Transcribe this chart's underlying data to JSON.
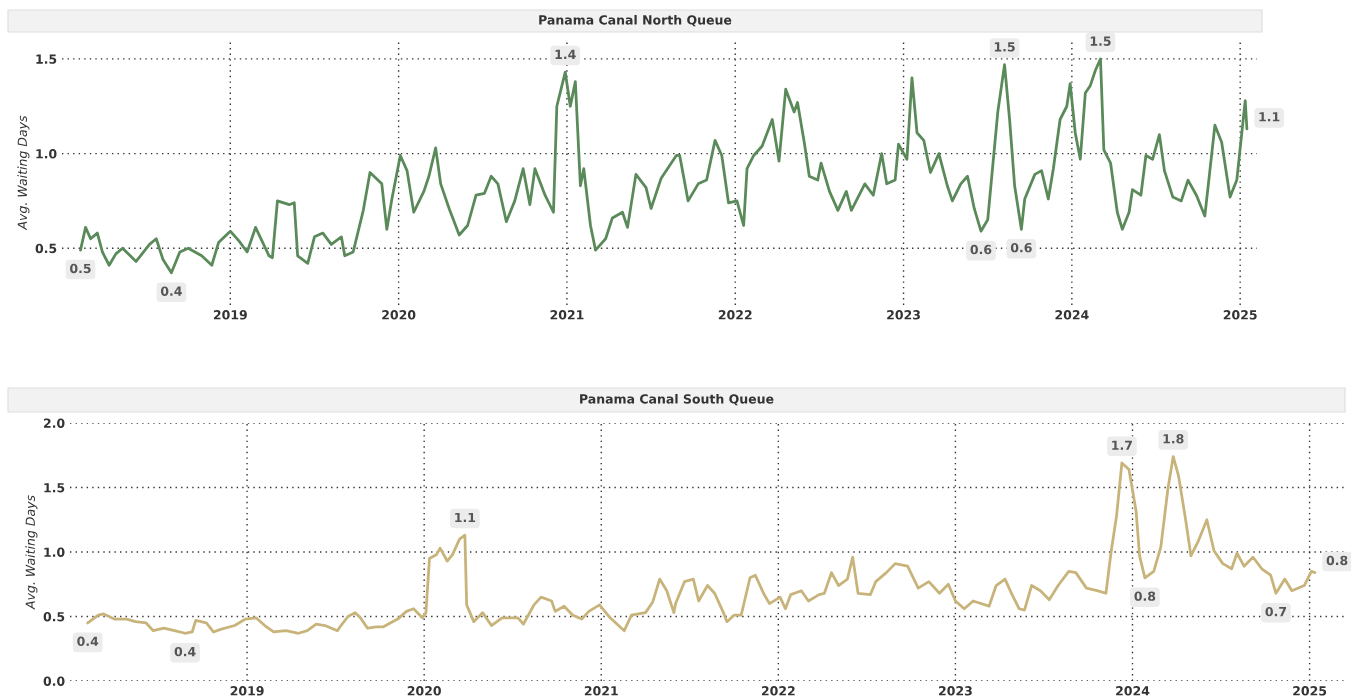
{
  "chart_data": [
    {
      "type": "line",
      "title": "Panama Canal North Queue",
      "ylabel": "Avg. Waiting Days",
      "grid": true,
      "legend": false,
      "xlim": [
        2018.0,
        2025.1
      ],
      "xticks": [
        2019,
        2020,
        2021,
        2022,
        2023,
        2024,
        2025
      ],
      "ylim": [
        0.2,
        1.6
      ],
      "yticks": [
        {
          "value": 0.5,
          "label": "0.5"
        },
        {
          "value": 1.0,
          "label": "1.0"
        },
        {
          "value": 1.5,
          "label": "1.5"
        }
      ],
      "series": [
        {
          "color": "#5a8a5a",
          "x": [
            2018.11,
            2018.14,
            2018.17,
            2018.21,
            2018.24,
            2018.28,
            2018.32,
            2018.36,
            2018.44,
            2018.52,
            2018.56,
            2018.6,
            2018.65,
            2018.7,
            2018.75,
            2018.83,
            2018.89,
            2018.93,
            2019.0,
            2019.05,
            2019.1,
            2019.15,
            2019.23,
            2019.25,
            2019.28,
            2019.35,
            2019.38,
            2019.4,
            2019.46,
            2019.5,
            2019.55,
            2019.6,
            2019.66,
            2019.68,
            2019.73,
            2019.79,
            2019.83,
            2019.9,
            2019.93,
            2019.96,
            2020.01,
            2020.05,
            2020.09,
            2020.15,
            2020.18,
            2020.22,
            2020.25,
            2020.3,
            2020.36,
            2020.41,
            2020.46,
            2020.51,
            2020.55,
            2020.59,
            2020.64,
            2020.69,
            2020.74,
            2020.78,
            2020.81,
            2020.87,
            2020.92,
            2020.94,
            2020.99,
            2021.02,
            2021.05,
            2021.08,
            2021.1,
            2021.14,
            2021.17,
            2021.23,
            2021.27,
            2021.33,
            2021.36,
            2021.41,
            2021.47,
            2021.5,
            2021.56,
            2021.65,
            2021.67,
            2021.72,
            2021.78,
            2021.83,
            2021.88,
            2021.92,
            2021.96,
            2022.01,
            2022.05,
            2022.07,
            2022.11,
            2022.16,
            2022.22,
            2022.26,
            2022.3,
            2022.35,
            2022.37,
            2022.41,
            2022.44,
            2022.49,
            2022.51,
            2022.56,
            2022.61,
            2022.66,
            2022.69,
            2022.77,
            2022.82,
            2022.87,
            2022.9,
            2022.95,
            2022.97,
            2023.02,
            2023.05,
            2023.08,
            2023.12,
            2023.16,
            2023.21,
            2023.26,
            2023.29,
            2023.34,
            2023.38,
            2023.42,
            2023.46,
            2023.5,
            2023.52,
            2023.56,
            2023.6,
            2023.63,
            2023.66,
            2023.7,
            2023.72,
            2023.78,
            2023.82,
            2023.86,
            2023.89,
            2023.93,
            2023.97,
            2023.99,
            2024.02,
            2024.05,
            2024.08,
            2024.11,
            2024.14,
            2024.17,
            2024.19,
            2024.23,
            2024.27,
            2024.3,
            2024.34,
            2024.36,
            2024.41,
            2024.44,
            2024.48,
            2024.52,
            2024.55,
            2024.6,
            2024.65,
            2024.69,
            2024.74,
            2024.79,
            2024.85,
            2024.89,
            2024.94,
            2024.98,
            2025.03,
            2025.04
          ],
          "values": [
            0.49,
            0.61,
            0.55,
            0.58,
            0.48,
            0.41,
            0.47,
            0.5,
            0.43,
            0.52,
            0.55,
            0.44,
            0.37,
            0.48,
            0.5,
            0.46,
            0.41,
            0.53,
            0.59,
            0.54,
            0.48,
            0.61,
            0.46,
            0.45,
            0.75,
            0.73,
            0.74,
            0.46,
            0.42,
            0.56,
            0.58,
            0.52,
            0.56,
            0.46,
            0.48,
            0.7,
            0.9,
            0.84,
            0.6,
            0.76,
            0.99,
            0.91,
            0.69,
            0.8,
            0.88,
            1.03,
            0.84,
            0.71,
            0.57,
            0.62,
            0.78,
            0.79,
            0.88,
            0.84,
            0.64,
            0.75,
            0.92,
            0.73,
            0.92,
            0.78,
            0.69,
            1.25,
            1.43,
            1.25,
            1.38,
            0.83,
            0.92,
            0.62,
            0.49,
            0.55,
            0.66,
            0.69,
            0.61,
            0.89,
            0.82,
            0.71,
            0.87,
            0.99,
            0.99,
            0.75,
            0.84,
            0.86,
            1.07,
            0.99,
            0.74,
            0.75,
            0.62,
            0.92,
            0.99,
            1.04,
            1.18,
            0.96,
            1.34,
            1.22,
            1.27,
            1.06,
            0.88,
            0.86,
            0.95,
            0.8,
            0.7,
            0.8,
            0.7,
            0.84,
            0.78,
            1.0,
            0.84,
            0.86,
            1.05,
            0.97,
            1.4,
            1.11,
            1.07,
            0.9,
            1.0,
            0.83,
            0.75,
            0.84,
            0.88,
            0.71,
            0.59,
            0.65,
            0.84,
            1.22,
            1.47,
            1.18,
            0.83,
            0.6,
            0.76,
            0.89,
            0.91,
            0.76,
            0.92,
            1.18,
            1.25,
            1.37,
            1.11,
            0.97,
            1.32,
            1.36,
            1.44,
            1.5,
            1.02,
            0.95,
            0.69,
            0.6,
            0.69,
            0.81,
            0.78,
            0.99,
            0.97,
            1.1,
            0.91,
            0.77,
            0.75,
            0.86,
            0.78,
            0.67,
            1.15,
            1.06,
            0.77,
            0.86,
            1.28,
            1.13
          ]
        }
      ],
      "annotations": [
        {
          "text": "0.5",
          "x": 2018.11,
          "y": 0.49
        },
        {
          "text": "0.4",
          "x": 2018.65,
          "y": 0.37
        },
        {
          "text": "1.4",
          "x": 2020.99,
          "y": 1.43
        },
        {
          "text": "0.6",
          "x": 2023.46,
          "y": 0.59
        },
        {
          "text": "1.5",
          "x": 2023.6,
          "y": 1.47
        },
        {
          "text": "0.6",
          "x": 2023.7,
          "y": 0.6
        },
        {
          "text": "1.5",
          "x": 2024.17,
          "y": 1.5
        },
        {
          "text": "1.1",
          "x": 2025.04,
          "y": 1.13
        }
      ]
    },
    {
      "type": "line",
      "title": "Panama Canal South Queue",
      "ylabel": "Avg. Waiting Days",
      "grid": true,
      "legend": false,
      "xlim": [
        2018.0,
        2025.2
      ],
      "xticks": [
        2019,
        2020,
        2021,
        2022,
        2023,
        2024,
        2025
      ],
      "ylim": [
        0.0,
        2.0
      ],
      "yticks": [
        {
          "value": 0.0,
          "label": "0.0"
        },
        {
          "value": 0.5,
          "label": "0.5"
        },
        {
          "value": 1.0,
          "label": "1.0"
        },
        {
          "value": 1.5,
          "label": "1.5"
        },
        {
          "value": 2.0,
          "label": "2.0"
        }
      ],
      "series": [
        {
          "color": "#c8b47a",
          "x": [
            2018.1,
            2018.16,
            2018.19,
            2018.25,
            2018.32,
            2018.37,
            2018.43,
            2018.47,
            2018.53,
            2018.59,
            2018.65,
            2018.69,
            2018.71,
            2018.77,
            2018.81,
            2018.85,
            2018.93,
            2018.99,
            2019.05,
            2019.1,
            2019.15,
            2019.22,
            2019.29,
            2019.34,
            2019.39,
            2019.44,
            2019.51,
            2019.53,
            2019.57,
            2019.61,
            2019.64,
            2019.68,
            2019.73,
            2019.77,
            2019.85,
            2019.9,
            2019.94,
            2019.99,
            2020.01,
            2020.03,
            2020.07,
            2020.09,
            2020.13,
            2020.16,
            2020.2,
            2020.23,
            2020.24,
            2020.28,
            2020.33,
            2020.38,
            2020.44,
            2020.53,
            2020.56,
            2020.62,
            2020.66,
            2020.72,
            2020.74,
            2020.79,
            2020.84,
            2020.89,
            2020.93,
            2020.99,
            2021.05,
            2021.13,
            2021.17,
            2021.25,
            2021.29,
            2021.33,
            2021.37,
            2021.41,
            2021.42,
            2021.47,
            2021.52,
            2021.55,
            2021.6,
            2021.64,
            2021.69,
            2021.71,
            2021.75,
            2021.79,
            2021.84,
            2021.87,
            2021.92,
            2021.95,
            2022.01,
            2022.04,
            2022.07,
            2022.13,
            2022.17,
            2022.23,
            2022.26,
            2022.3,
            2022.34,
            2022.39,
            2022.42,
            2022.45,
            2022.52,
            2022.55,
            2022.61,
            2022.66,
            2022.73,
            2022.79,
            2022.85,
            2022.91,
            2022.96,
            2023.0,
            2023.05,
            2023.1,
            2023.19,
            2023.23,
            2023.28,
            2023.32,
            2023.36,
            2023.39,
            2023.43,
            2023.48,
            2023.53,
            2023.58,
            2023.64,
            2023.68,
            2023.74,
            2023.8,
            2023.85,
            2023.88,
            2023.91,
            2023.94,
            2023.98,
            2024.02,
            2024.04,
            2024.07,
            2024.12,
            2024.16,
            2024.2,
            2024.23,
            2024.26,
            2024.3,
            2024.33,
            2024.37,
            2024.42,
            2024.46,
            2024.51,
            2024.56,
            2024.59,
            2024.63,
            2024.68,
            2024.73,
            2024.78,
            2024.81,
            2024.86,
            2024.9,
            2024.97,
            2025.01,
            2025.03
          ],
          "values": [
            0.45,
            0.51,
            0.52,
            0.48,
            0.48,
            0.46,
            0.45,
            0.39,
            0.41,
            0.39,
            0.37,
            0.38,
            0.47,
            0.45,
            0.38,
            0.4,
            0.43,
            0.48,
            0.49,
            0.43,
            0.38,
            0.39,
            0.37,
            0.39,
            0.44,
            0.43,
            0.39,
            0.43,
            0.5,
            0.53,
            0.49,
            0.41,
            0.42,
            0.42,
            0.48,
            0.54,
            0.56,
            0.49,
            0.53,
            0.95,
            0.98,
            1.03,
            0.93,
            0.98,
            1.1,
            1.13,
            0.59,
            0.46,
            0.53,
            0.43,
            0.49,
            0.49,
            0.44,
            0.59,
            0.65,
            0.62,
            0.54,
            0.58,
            0.51,
            0.48,
            0.54,
            0.59,
            0.49,
            0.39,
            0.51,
            0.53,
            0.61,
            0.79,
            0.7,
            0.53,
            0.6,
            0.77,
            0.79,
            0.62,
            0.74,
            0.68,
            0.53,
            0.46,
            0.51,
            0.51,
            0.8,
            0.82,
            0.67,
            0.6,
            0.65,
            0.56,
            0.67,
            0.7,
            0.62,
            0.67,
            0.68,
            0.84,
            0.74,
            0.79,
            0.96,
            0.68,
            0.67,
            0.77,
            0.84,
            0.91,
            0.89,
            0.72,
            0.77,
            0.68,
            0.75,
            0.62,
            0.56,
            0.62,
            0.58,
            0.74,
            0.79,
            0.67,
            0.56,
            0.55,
            0.74,
            0.7,
            0.63,
            0.74,
            0.85,
            0.84,
            0.72,
            0.7,
            0.68,
            1.01,
            1.28,
            1.69,
            1.64,
            1.32,
            0.97,
            0.8,
            0.85,
            1.04,
            1.49,
            1.74,
            1.59,
            1.25,
            0.97,
            1.08,
            1.25,
            1.01,
            0.91,
            0.87,
            0.99,
            0.89,
            0.96,
            0.87,
            0.82,
            0.68,
            0.79,
            0.7,
            0.74,
            0.85,
            0.84
          ]
        }
      ],
      "annotations": [
        {
          "text": "0.4",
          "x": 2018.1,
          "y": 0.45
        },
        {
          "text": "0.4",
          "x": 2018.65,
          "y": 0.37
        },
        {
          "text": "1.1",
          "x": 2020.23,
          "y": 1.13
        },
        {
          "text": "1.7",
          "x": 2023.94,
          "y": 1.69
        },
        {
          "text": "0.8",
          "x": 2024.07,
          "y": 0.8
        },
        {
          "text": "1.8",
          "x": 2024.23,
          "y": 1.74
        },
        {
          "text": "0.7",
          "x": 2024.81,
          "y": 0.68
        },
        {
          "text": "0.8",
          "x": 2025.03,
          "y": 0.84
        }
      ]
    }
  ]
}
